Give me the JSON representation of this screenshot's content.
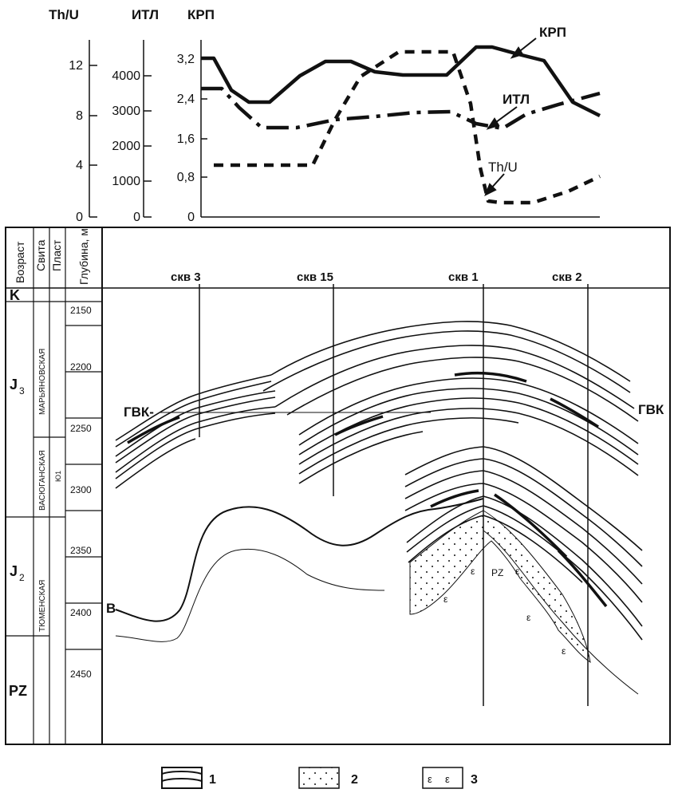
{
  "top_chart": {
    "axes": [
      {
        "label": "Th/U",
        "ticks": [
          "0",
          "4",
          "8",
          "12"
        ]
      },
      {
        "label": "ИТЛ",
        "ticks": [
          "0",
          "1000",
          "2000",
          "3000",
          "4000"
        ]
      },
      {
        "label": "КРП",
        "ticks": [
          "0",
          "0,8",
          "1,6",
          "2,4",
          "3,2"
        ]
      }
    ],
    "series_labels": [
      "КРП",
      "ИТЛ",
      "Th/U"
    ]
  },
  "chart_data": {
    "type": "line",
    "series": [
      {
        "name": "КРП",
        "values": [
          3.2,
          3.2,
          2.65,
          2.5,
          2.5,
          2.9,
          3.1,
          3.1,
          3.0,
          2.95,
          2.95,
          3.3,
          3.3,
          3.2,
          3.05,
          2.6,
          2.4
        ]
      },
      {
        "name": "ИТЛ",
        "values": [
          2600,
          2600,
          2550,
          2000,
          1800,
          1800,
          1950,
          2050,
          2150,
          2200,
          2250,
          1900,
          1900,
          2050,
          2150,
          2400,
          2600
        ]
      },
      {
        "name": "Th/U",
        "values": [
          2,
          2,
          2,
          2,
          3.8,
          9,
          12.5,
          12.5,
          12.5,
          4,
          0.3,
          0.3,
          0.5,
          1.4,
          2.6,
          3.3
        ]
      }
    ]
  },
  "section": {
    "columns": [
      "Возраст",
      "Свита",
      "Пласт",
      "Глубина, м"
    ],
    "ages": [
      "K",
      "J3",
      "J2",
      "PZ"
    ],
    "age_sub": "3",
    "age_sub2": "2",
    "age_letter": "J",
    "suites": [
      "МАРЬЯНОВСКАЯ",
      "ВАСЮГАНСКАЯ",
      "ТЮМЕНСКАЯ"
    ],
    "plast": "Ю1",
    "depths": [
      "2150",
      "2200",
      "2250",
      "2300",
      "2350",
      "2400",
      "2450"
    ],
    "wells": [
      "скв 3",
      "скв 15",
      "скв 1",
      "скв 2"
    ],
    "labels": {
      "gvk_left": "ГВК-",
      "gvk_right": "ГВК",
      "b": "В",
      "pz": "PZ"
    }
  },
  "legend": [
    "1",
    "2",
    "3"
  ]
}
